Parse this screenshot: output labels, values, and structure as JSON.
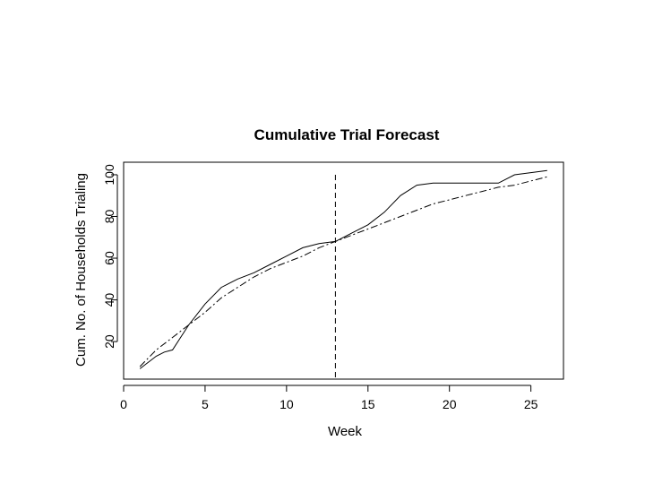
{
  "chart_data": {
    "type": "line",
    "title": "Cumulative Trial Forecast",
    "xlabel": "Week",
    "ylabel": "Cum. No. of Households Trialing",
    "xlim": [
      0,
      27
    ],
    "ylim": [
      2,
      106
    ],
    "x_ticks": [
      0,
      5,
      10,
      15,
      20,
      25
    ],
    "y_ticks": [
      20,
      40,
      60,
      80,
      100
    ],
    "grid": false,
    "legend": "none",
    "vertical_reference_line": {
      "x": 13,
      "style": "dashed"
    },
    "series": [
      {
        "style": "solid",
        "x": [
          1,
          2,
          2.5,
          3,
          3.5,
          4,
          5,
          6,
          7,
          8,
          9,
          10,
          11,
          12,
          13,
          14,
          15,
          16,
          17,
          18,
          19,
          20,
          21,
          22,
          23,
          24,
          25,
          26
        ],
        "y": [
          7,
          13,
          15,
          16,
          22,
          28,
          38,
          46,
          50,
          53,
          57,
          61,
          65,
          67,
          68,
          72,
          76,
          82,
          90,
          95,
          96,
          96,
          96,
          96,
          96,
          100,
          101,
          102
        ]
      },
      {
        "style": "dash-dot",
        "x": [
          1,
          2,
          3,
          4,
          5,
          6,
          7,
          8,
          9,
          10,
          11,
          12,
          13,
          14,
          15,
          16,
          17,
          18,
          19,
          20,
          21,
          22,
          23,
          24,
          25,
          26
        ],
        "y": [
          8,
          16,
          22,
          28,
          34,
          41,
          46,
          51,
          55,
          58,
          61,
          65,
          68,
          71,
          74,
          77,
          80,
          83,
          86,
          88,
          90,
          92,
          94,
          95,
          97,
          99
        ]
      }
    ]
  }
}
